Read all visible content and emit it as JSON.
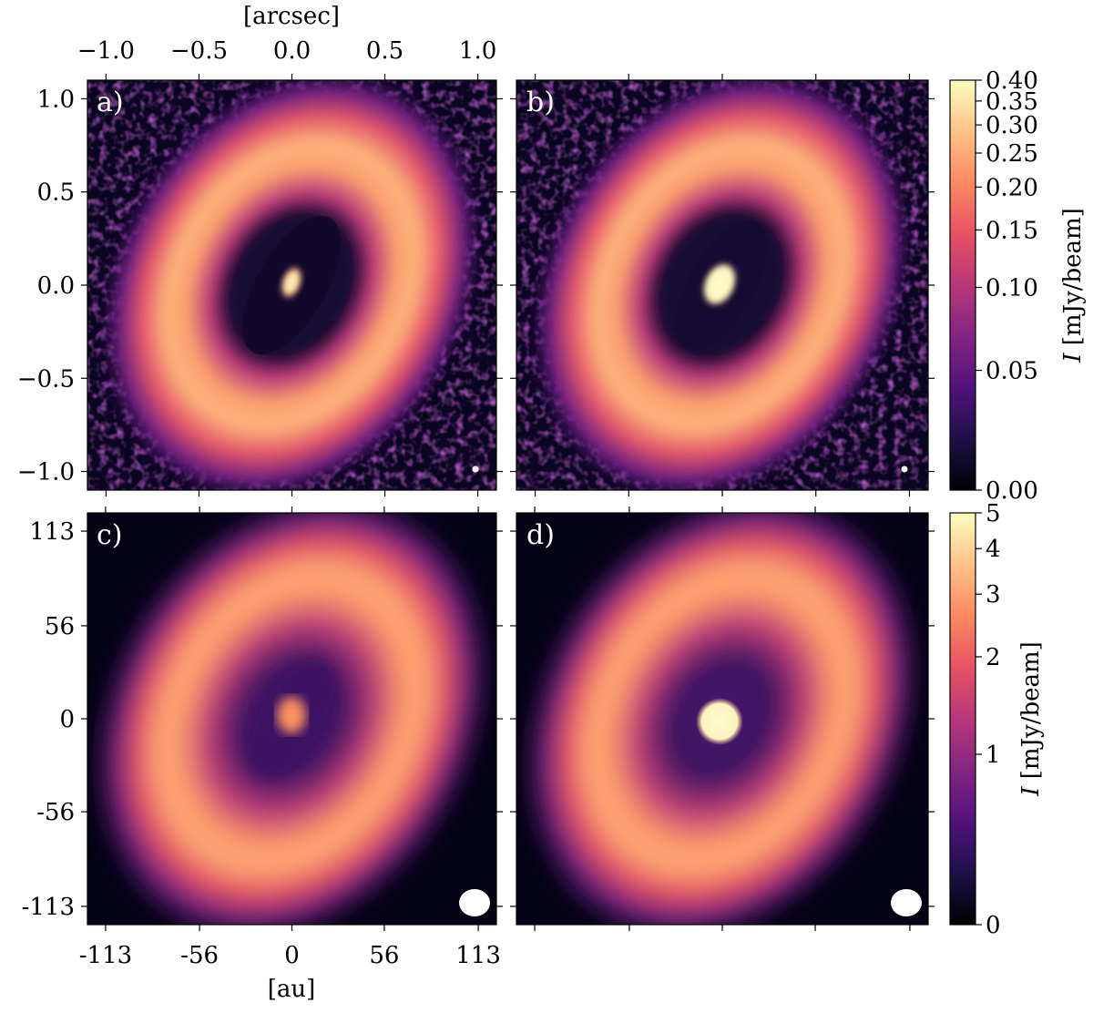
{
  "colors": {
    "colormap": [
      "#000004",
      "#1d1147",
      "#51127c",
      "#822681",
      "#b73779",
      "#e75263",
      "#fc8961",
      "#fec287",
      "#fcfdbf"
    ],
    "beam": "#ffffff",
    "frame": "#000000"
  },
  "chart_data": [
    {
      "type": "heatmap",
      "panel": "a)",
      "colormap": "magma",
      "top_axis_label": "[arcsec]",
      "top_ticks": [
        "−1.0",
        "−0.5",
        "0.0",
        "0.5",
        "1.0"
      ],
      "top_tick_values": [
        -1.0,
        -0.5,
        0.0,
        0.5,
        1.0
      ],
      "left_ticks": [
        "1.0",
        "0.5",
        "0.0",
        "−0.5",
        "−1.0"
      ],
      "left_tick_values": [
        1.0,
        0.5,
        0.0,
        -0.5,
        -1.0
      ],
      "xlim": [
        -1.1,
        1.1
      ],
      "ylim": [
        -1.1,
        1.1
      ],
      "features": "inclined ring with central compact source; dark gap; small beam",
      "brightness_scale": "colorbar top (mJy/beam)"
    },
    {
      "type": "heatmap",
      "panel": "b)",
      "colormap": "magma",
      "xlim": [
        -1.1,
        1.1
      ],
      "ylim": [
        -1.1,
        1.1
      ],
      "features": "inclined ring with bright central source; small beam",
      "brightness_scale": "colorbar top (mJy/beam)"
    },
    {
      "type": "heatmap",
      "panel": "c)",
      "colormap": "magma",
      "bottom_axis_label": "[au]",
      "bottom_ticks": [
        "-113",
        "-56",
        "0",
        "56",
        "113"
      ],
      "bottom_tick_values": [
        -113,
        -56,
        0,
        56,
        113
      ],
      "left_ticks": [
        "113",
        "56",
        "0",
        "-56",
        "-113"
      ],
      "left_tick_values": [
        113,
        56,
        0,
        -56,
        -113
      ],
      "xlim": [
        -124,
        124
      ],
      "ylim": [
        -124,
        124
      ],
      "features": "smoothed inclined ring with central source; large beam",
      "brightness_scale": "colorbar bottom (mJy/beam)"
    },
    {
      "type": "heatmap",
      "panel": "d)",
      "colormap": "magma",
      "xlim": [
        -124,
        124
      ],
      "ylim": [
        -124,
        124
      ],
      "features": "smoothed inclined ring with saturated bright central source; large beam",
      "brightness_scale": "colorbar bottom (mJy/beam)"
    }
  ],
  "colorbars": [
    {
      "label": "I [mJy/beam]",
      "label_symbol": "I",
      "label_unit": "[mJy/beam]",
      "ticks": [
        "0.40",
        "0.35",
        "0.30",
        "0.25",
        "0.20",
        "0.15",
        "0.10",
        "0.05",
        "0.00"
      ],
      "tick_values": [
        0.4,
        0.35,
        0.3,
        0.25,
        0.2,
        0.15,
        0.1,
        0.05,
        0.0
      ],
      "range": [
        0.0,
        0.4
      ],
      "scale": "asinh-like stretch"
    },
    {
      "label": "I [mJy/beam]",
      "label_symbol": "I",
      "label_unit": "[mJy/beam]",
      "ticks": [
        "5",
        "4",
        "3",
        "2",
        "1",
        "0"
      ],
      "tick_values": [
        5,
        4,
        3,
        2,
        1,
        0
      ],
      "range": [
        0,
        5
      ],
      "scale": "asinh-like stretch"
    }
  ]
}
